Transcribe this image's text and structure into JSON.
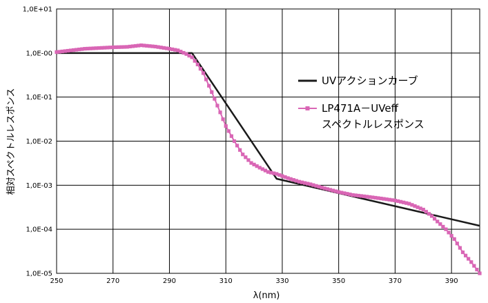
{
  "chart_data": {
    "type": "line",
    "title": "",
    "xlabel": "λ(nm)",
    "ylabel": "相対スペクトルレスポンス",
    "xlim": [
      250,
      400
    ],
    "ylim": [
      1e-05,
      10
    ],
    "yscale": "log",
    "grid": true,
    "legend_position": "right",
    "x_ticks": [
      250,
      270,
      290,
      310,
      330,
      350,
      370,
      390
    ],
    "y_ticks": [
      10,
      1,
      0.1,
      0.01,
      0.001,
      0.0001,
      1e-05
    ],
    "y_tick_labels": [
      "1,0E+01",
      "1,0E-00",
      "1,0E-01",
      "1,0E-02",
      "1,0E-03",
      "1,0E-04",
      "1,0E-05"
    ],
    "series": [
      {
        "name": "UVアクションカーブ",
        "color": "#1a1a1a",
        "marker": "none",
        "x": [
          250,
          298,
          328,
          400
        ],
        "y": [
          1.0,
          1.0,
          0.0014,
          0.00012
        ]
      },
      {
        "name": [
          "LP471A－UVeff",
          "スペクトルレスポンス"
        ],
        "color": "#d966b5",
        "marker": "square",
        "x": [
          250,
          260,
          270,
          275,
          280,
          285,
          290,
          293,
          296,
          298,
          300,
          302,
          305,
          308,
          310,
          313,
          316,
          319,
          322,
          325,
          328,
          332,
          336,
          340,
          345,
          350,
          355,
          360,
          365,
          370,
          375,
          380,
          383,
          385,
          388,
          391,
          394,
          397,
          400
        ],
        "y": [
          1.05,
          1.25,
          1.35,
          1.38,
          1.5,
          1.4,
          1.25,
          1.15,
          0.95,
          0.8,
          0.55,
          0.35,
          0.13,
          0.045,
          0.022,
          0.01,
          0.005,
          0.0032,
          0.0025,
          0.002,
          0.0018,
          0.00145,
          0.0012,
          0.00105,
          0.00085,
          0.0007,
          0.0006,
          0.00055,
          0.0005,
          0.00045,
          0.00038,
          0.00028,
          0.0002,
          0.00015,
          0.0001,
          6e-05,
          3e-05,
          1.8e-05,
          1e-05
        ]
      }
    ]
  }
}
